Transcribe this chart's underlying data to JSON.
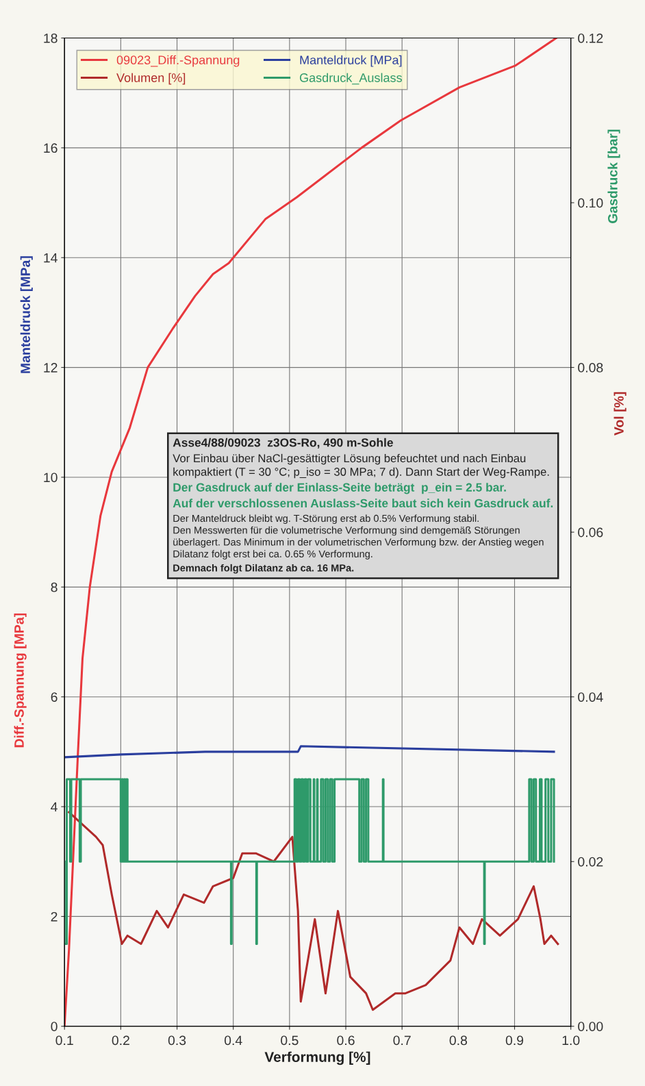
{
  "chart_data": {
    "type": "line",
    "xlabel": "Verformung [%]",
    "ylabel": "Diff.-Spannung [MPa]",
    "y2label": "Vol [%]",
    "xlim": [
      0.1,
      1.0
    ],
    "xticks": [
      0.1,
      0.2,
      0.3,
      0.4,
      0.5,
      0.6,
      0.7,
      0.8,
      0.9,
      {
        "value": 1.0,
        "label": "1.0"
      }
    ],
    "ylim": [
      0,
      18
    ],
    "yticks": [
      0,
      2,
      4,
      6,
      8,
      10,
      12,
      14,
      16,
      18
    ],
    "y2lim": [
      0,
      0.12
    ],
    "y2ticks": [
      {
        "value": 0,
        "label": "0.00"
      },
      {
        "value": 0.02,
        "label": "0.02"
      },
      {
        "value": 0.04,
        "label": "0.04"
      },
      {
        "value": 0.06,
        "label": "0.06"
      },
      {
        "value": 0.08,
        "label": "0.08"
      },
      {
        "value": 0.1,
        "label": "0.10"
      },
      {
        "value": 0.12,
        "label": "0.12"
      }
    ],
    "grid": true,
    "legend": "top left",
    "annotations": [
      "Manteldruck [MPa]",
      "Gasdruck [bar]",
      "Asse4/88/09023  z3OS-Ro, 490 m-Sohle",
      "Vor Einbau über NaCl-gesättigter Lösung befeuchtet und nach Einbau\nkompaktiert (T = 30 °C; p_iso = 30 MPa; 7 d). Dann Start der Weg-Rampe.",
      "Der Gasdruck auf der Einlass-Seite beträgt  p_ein = 2.5 bar.",
      "Auf der verschlossenen Auslass-Seite baut sich kein Gasdruck auf.",
      "Der Manteldruck bleibt wg. T-Störung erst ab 0.5% Verformung stabil.\nDen Messwerten für die volumetrische Verformung sind demgemäß Störungen\nüberlagert. Das Minimum in der volumetrischen Verformung bzw. der Anstieg wegen\nDilatanz folgt erst bei ca. 0.65 % Verformung.",
      "Demnach folgt Dilatanz ab ca. 16 MPa."
    ],
    "series": [
      {
        "name": "09023_Diff.-Spannung",
        "color": "#e8383d",
        "x": [
          0.1,
          0.108,
          0.124,
          0.132,
          0.145,
          0.164,
          0.184,
          0.216,
          0.248,
          0.292,
          0.332,
          0.364,
          0.392,
          0.457,
          0.513,
          0.564,
          0.628,
          0.698,
          0.802,
          0.902,
          0.974
        ],
        "values": [
          0,
          1.4,
          5.0,
          6.7,
          8.0,
          9.3,
          10.1,
          10.9,
          12.0,
          12.7,
          13.3,
          13.7,
          13.9,
          14.7,
          15.1,
          15.5,
          16.0,
          16.5,
          17.1,
          17.5,
          18.0
        ]
      },
      {
        "name": "Volumen [%]",
        "color": "#b02a2a",
        "axis": "y2",
        "x": [
          0.108,
          0.124,
          0.156,
          0.168,
          0.184,
          0.202,
          0.212,
          0.236,
          0.264,
          0.284,
          0.312,
          0.348,
          0.364,
          0.4,
          0.416,
          0.44,
          0.472,
          0.505,
          0.515,
          0.52,
          0.545,
          0.564,
          0.586,
          0.608,
          0.636,
          0.648,
          0.688,
          0.706,
          0.742,
          0.786,
          0.802,
          0.826,
          0.842,
          0.874,
          0.906,
          0.934,
          0.946,
          0.953,
          0.965,
          0.977
        ],
        "values": [
          0.026,
          0.025,
          0.023,
          0.022,
          0.016,
          0.01,
          0.011,
          0.01,
          0.014,
          0.012,
          0.016,
          0.015,
          0.017,
          0.018,
          0.021,
          0.021,
          0.02,
          0.023,
          0.014,
          0.003,
          0.013,
          0.004,
          0.014,
          0.006,
          0.004,
          0.002,
          0.004,
          0.004,
          0.005,
          0.008,
          0.012,
          0.01,
          0.013,
          0.011,
          0.013,
          0.017,
          0.013,
          0.01,
          0.011,
          0.01
        ]
      },
      {
        "name": "Manteldruck [MPa]",
        "color": "#2b3f9e",
        "x": [
          0.1,
          0.2,
          0.35,
          0.515,
          0.52,
          0.97
        ],
        "values": [
          4.9,
          4.95,
          5.0,
          5.0,
          5.1,
          5.0
        ]
      },
      {
        "name": "Gasdruck_Auslass",
        "color": "#2e9a6a",
        "axis": "y2",
        "x": [
          0.1,
          0.1,
          0.104,
          0.104,
          0.11,
          0.11,
          0.112,
          0.112,
          0.127,
          0.127,
          0.129,
          0.129,
          0.2,
          0.2,
          0.202,
          0.202,
          0.204,
          0.204,
          0.206,
          0.206,
          0.208,
          0.208,
          0.21,
          0.21,
          0.212,
          0.212,
          0.396,
          0.396,
          0.397,
          0.397,
          0.441,
          0.441,
          0.442,
          0.442,
          0.509,
          0.509,
          0.512,
          0.512,
          0.515,
          0.515,
          0.518,
          0.518,
          0.521,
          0.521,
          0.524,
          0.524,
          0.527,
          0.527,
          0.53,
          0.53,
          0.533,
          0.533,
          0.537,
          0.537,
          0.543,
          0.543,
          0.544,
          0.544,
          0.549,
          0.549,
          0.55,
          0.55,
          0.556,
          0.556,
          0.56,
          0.56,
          0.564,
          0.564,
          0.568,
          0.568,
          0.572,
          0.572,
          0.576,
          0.576,
          0.58,
          0.58,
          0.586,
          0.624,
          0.624,
          0.628,
          0.628,
          0.632,
          0.632,
          0.636,
          0.636,
          0.64,
          0.64,
          0.666,
          0.666,
          0.667,
          0.667,
          0.846,
          0.846,
          0.847,
          0.847,
          0.926,
          0.926,
          0.93,
          0.93,
          0.934,
          0.934,
          0.938,
          0.938,
          0.945,
          0.945,
          0.948,
          0.948,
          0.955,
          0.955,
          0.96,
          0.96,
          0.965,
          0.965,
          0.97,
          0.97
        ],
        "values": [
          0.02,
          0.01,
          0.01,
          0.03,
          0.03,
          0.02,
          0.02,
          0.03,
          0.03,
          0.02,
          0.02,
          0.03,
          0.03,
          0.02,
          0.02,
          0.03,
          0.03,
          0.02,
          0.02,
          0.03,
          0.03,
          0.02,
          0.02,
          0.03,
          0.03,
          0.02,
          0.02,
          0.01,
          0.01,
          0.02,
          0.02,
          0.01,
          0.01,
          0.02,
          0.02,
          0.03,
          0.03,
          0.02,
          0.02,
          0.03,
          0.03,
          0.02,
          0.02,
          0.03,
          0.03,
          0.02,
          0.02,
          0.03,
          0.03,
          0.02,
          0.02,
          0.03,
          0.03,
          0.02,
          0.02,
          0.03,
          0.03,
          0.02,
          0.02,
          0.03,
          0.03,
          0.02,
          0.02,
          0.03,
          0.03,
          0.02,
          0.02,
          0.03,
          0.03,
          0.02,
          0.02,
          0.03,
          0.03,
          0.02,
          0.02,
          0.03,
          0.03,
          0.03,
          0.02,
          0.02,
          0.03,
          0.03,
          0.02,
          0.02,
          0.03,
          0.03,
          0.02,
          0.02,
          0.03,
          0.03,
          0.02,
          0.02,
          0.01,
          0.01,
          0.02,
          0.02,
          0.03,
          0.03,
          0.02,
          0.02,
          0.03,
          0.03,
          0.02,
          0.02,
          0.03,
          0.03,
          0.02,
          0.02,
          0.03,
          0.03,
          0.02,
          0.02,
          0.03,
          0.03,
          0.02
        ]
      }
    ]
  }
}
